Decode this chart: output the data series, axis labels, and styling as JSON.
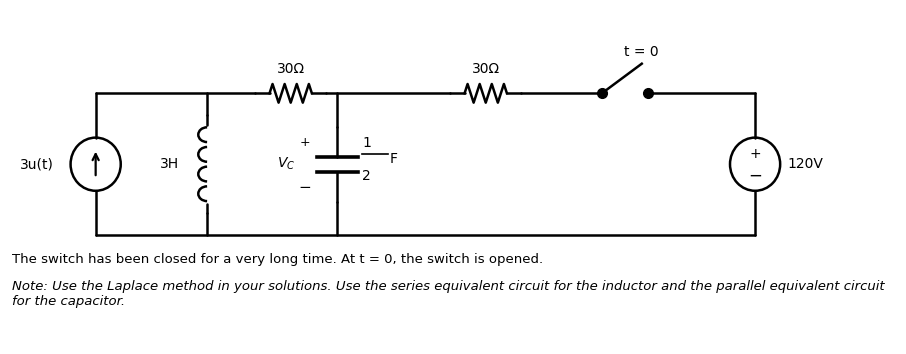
{
  "fig_width": 9.06,
  "fig_height": 3.54,
  "bg_color": "#ffffff",
  "line_color": "#000000",
  "line_width": 1.8,
  "source_label": "3u(t)",
  "inductor_label": "3H",
  "cap_plus": "+",
  "cap_minus": "-",
  "r1_label": "30Ω",
  "r2_label": "30Ω",
  "switch_label": "t = 0",
  "vsource_label": "120V",
  "note1": "The switch has been closed for a very long time. At t = 0, the switch is opened.",
  "note2": "Note: Use the Laplace method in your solutions. Use the series equivalent circuit for the inductor and the parallel equivalent circuit for the capacitor."
}
